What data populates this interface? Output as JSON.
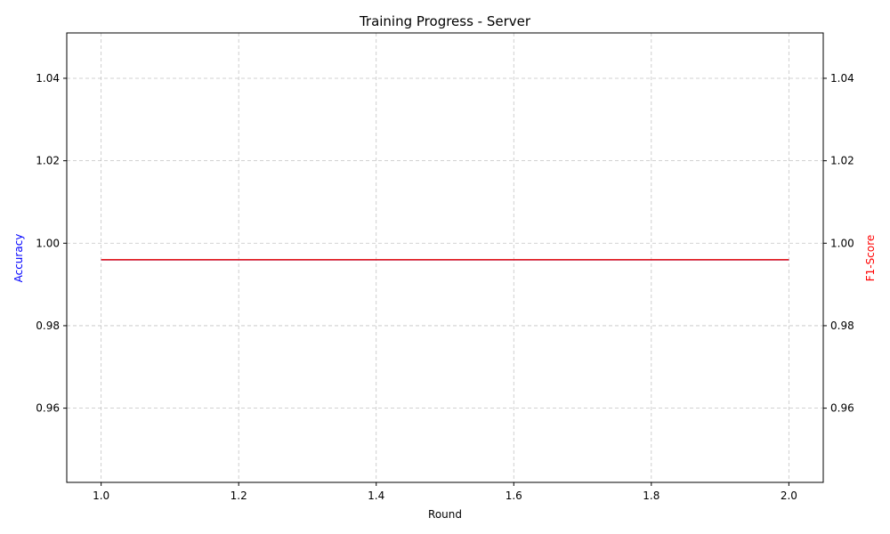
{
  "chart_data": {
    "type": "line",
    "title": "Training Progress - Server",
    "xlabel": "Round",
    "ylabel_left": "Accuracy",
    "ylabel_right": "F1-Score",
    "xlim": [
      0.95,
      2.05
    ],
    "ylim_left": [
      0.942,
      1.051
    ],
    "ylim_right": [
      0.942,
      1.051
    ],
    "x_ticks": [
      1.0,
      1.2,
      1.4,
      1.6,
      1.8,
      2.0
    ],
    "x_tick_labels": [
      "1.0",
      "1.2",
      "1.4",
      "1.6",
      "1.8",
      "2.0"
    ],
    "y_ticks": [
      0.96,
      0.98,
      1.0,
      1.02,
      1.04
    ],
    "y_tick_labels": [
      "0.96",
      "0.98",
      "1.00",
      "1.02",
      "1.04"
    ],
    "grid": true,
    "series": [
      {
        "axis": "left",
        "color": "#1f1fff",
        "x": [
          1.0,
          2.0
        ],
        "y": [
          0.996,
          0.996
        ]
      },
      {
        "axis": "right",
        "color": "#e41a1c",
        "x": [
          1.0,
          2.0
        ],
        "y": [
          0.996,
          0.996
        ]
      }
    ],
    "colors": {
      "left_label": "#0000ff",
      "right_label": "#ff0000"
    }
  }
}
